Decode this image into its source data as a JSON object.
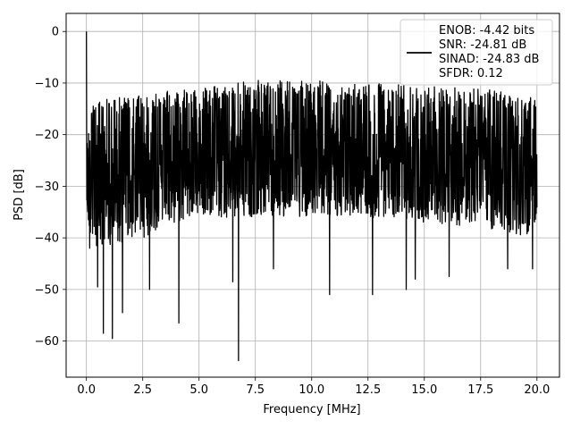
{
  "chart_data": {
    "type": "line",
    "xlabel": "Frequency [MHz]",
    "ylabel": "PSD [dB]",
    "xlim": [
      -0.9,
      21.0
    ],
    "ylim": [
      -67,
      3.5
    ],
    "x_ticks": [
      0.0,
      2.5,
      5.0,
      7.5,
      10.0,
      12.5,
      15.0,
      17.5,
      20.0
    ],
    "x_tick_labels": [
      "0.0",
      "2.5",
      "5.0",
      "7.5",
      "10.0",
      "12.5",
      "15.0",
      "17.5",
      "20.0"
    ],
    "y_ticks": [
      0,
      -10,
      -20,
      -30,
      -40,
      -50,
      -60
    ],
    "y_tick_labels": [
      "0",
      "−10",
      "−20",
      "−30",
      "−40",
      "−50",
      "−60"
    ],
    "grid": true,
    "legend_position": "top-right",
    "legend_lines": [
      "ENOB: -4.42 bits",
      "SNR: -24.81 dB",
      "SINAD: -24.83 dB",
      "SFDR: 0.12"
    ],
    "series": [
      {
        "color": "#000000",
        "x_range": [
          0.0,
          20.0
        ],
        "num_points": 2048,
        "envelope": {
          "x": [
            0,
            0.5,
            2.5,
            5,
            7.5,
            10,
            12.5,
            15,
            17.5,
            20
          ],
          "upper": [
            -15,
            -13,
            -12,
            -11,
            -9.5,
            -9.5,
            -10,
            -10.5,
            -11,
            -13
          ],
          "lower": [
            -38,
            -42,
            -40,
            -36,
            -36,
            -36,
            -36,
            -37,
            -38,
            -40
          ]
        },
        "peaks": [
          {
            "x": 0.0,
            "y": 0.0
          }
        ],
        "notable_dips": [
          {
            "x": 0.15,
            "y": -42
          },
          {
            "x": 0.5,
            "y": -49.5
          },
          {
            "x": 0.75,
            "y": -58.5
          },
          {
            "x": 1.15,
            "y": -59.5
          },
          {
            "x": 1.6,
            "y": -54.5
          },
          {
            "x": 2.8,
            "y": -50
          },
          {
            "x": 4.1,
            "y": -56.5
          },
          {
            "x": 6.75,
            "y": -63.8
          },
          {
            "x": 6.5,
            "y": -48.5
          },
          {
            "x": 8.3,
            "y": -46
          },
          {
            "x": 10.8,
            "y": -51
          },
          {
            "x": 12.7,
            "y": -51
          },
          {
            "x": 14.2,
            "y": -50
          },
          {
            "x": 14.6,
            "y": -48
          },
          {
            "x": 16.1,
            "y": -47.5
          },
          {
            "x": 18.7,
            "y": -46
          },
          {
            "x": 19.8,
            "y": -46
          }
        ]
      }
    ]
  }
}
